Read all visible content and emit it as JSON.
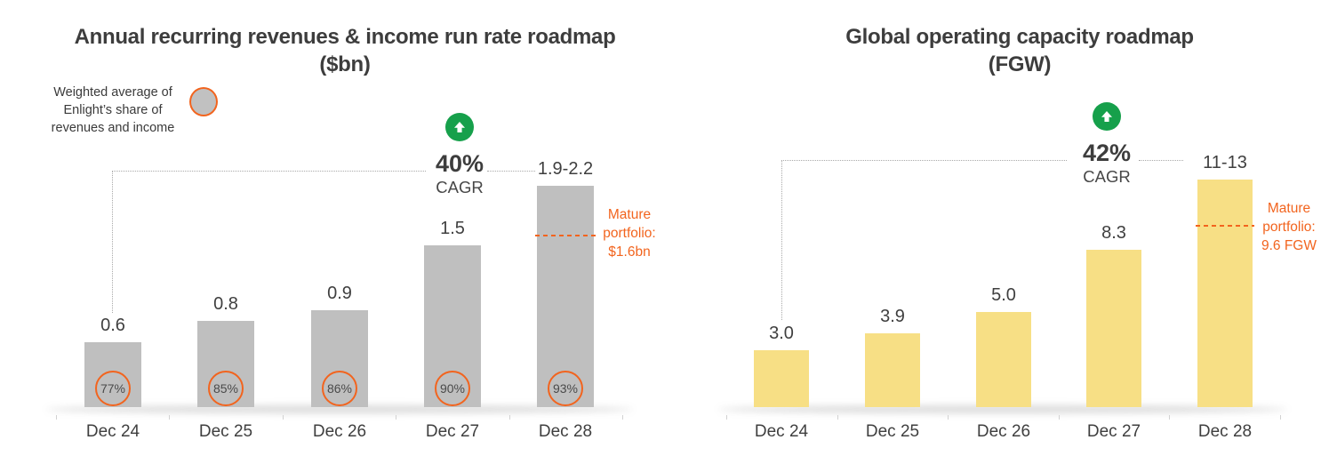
{
  "slide": {
    "background": "#ffffff"
  },
  "colors": {
    "accent_orange": "#f2641e",
    "green": "#16a04b",
    "bar_gray": "#bfbfbf",
    "bar_yellow": "#f7df85",
    "text_dark": "#3d3d3d",
    "bracket_gray": "#a9a9a9",
    "tick_gray": "#d2d2d2"
  },
  "chart_data": [
    {
      "type": "bar",
      "title": "Annual recurring revenues & income run rate roadmap",
      "subtitle": "($bn)",
      "categories": [
        "Dec 24",
        "Dec 25",
        "Dec 26",
        "Dec 27",
        "Dec 28"
      ],
      "values": [
        0.6,
        0.8,
        0.9,
        1.5,
        2.05
      ],
      "value_labels": [
        "0.6",
        "0.8",
        "0.9",
        "1.5",
        "1.9-2.2"
      ],
      "share_labels": [
        "77%",
        "85%",
        "86%",
        "90%",
        "93%"
      ],
      "legend_text": "Weighted average of\nEnlight’s share of\nrevenues and income",
      "cagr_value": "40%",
      "cagr_label": "CAGR",
      "mature_text": "Mature\nportfolio:\n$1.6bn",
      "mature_value": 1.6,
      "bar_color": "#bfbfbf",
      "ylim": [
        0,
        2.35
      ],
      "grid": false,
      "xlabel": "",
      "ylabel": "",
      "legend_position": "top-left"
    },
    {
      "type": "bar",
      "title": "Global operating capacity roadmap",
      "subtitle": "(FGW)",
      "categories": [
        "Dec 24",
        "Dec 25",
        "Dec 26",
        "Dec 27",
        "Dec 28"
      ],
      "values": [
        3.0,
        3.9,
        5.0,
        8.3,
        12.0
      ],
      "value_labels": [
        "3.0",
        "3.9",
        "5.0",
        "8.3",
        "11-13"
      ],
      "cagr_value": "42%",
      "cagr_label": "CAGR",
      "mature_text": "Mature\nportfolio:\n9.6 FGW",
      "mature_value": 9.6,
      "bar_color": "#f7df85",
      "ylim": [
        0,
        13.35
      ],
      "grid": false,
      "xlabel": "",
      "ylabel": "",
      "legend_position": "none"
    }
  ]
}
